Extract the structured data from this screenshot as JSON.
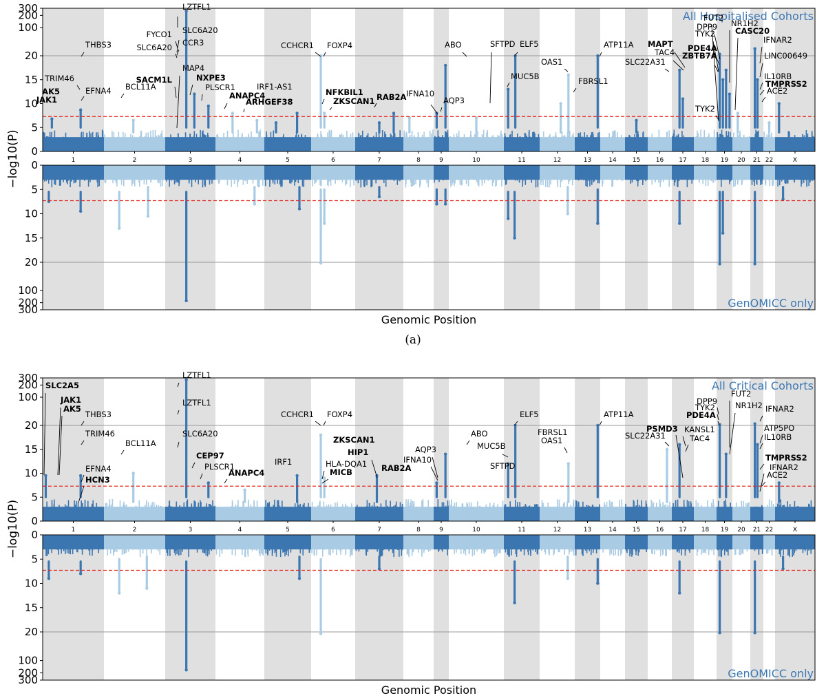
{
  "figure": {
    "subcaption": "(a)"
  },
  "colors": {
    "dark": "#3b76b0",
    "light": "#a9cbe3",
    "band": "#e0e0e0",
    "threshold": "#e8251d",
    "legend": "#3c78b4",
    "grid": "#999999"
  },
  "chart_data": [
    {
      "type": "scatter",
      "subtype": "miami_plot",
      "id": "a",
      "title_top": "All Hospitalised Cohorts",
      "title_bottom": "GenOMICC only",
      "xlabel": "Genomic Position",
      "ylabel": "−log10(P)",
      "y_ticks": [
        "0",
        "5",
        "10",
        "15",
        "20",
        "100",
        "200",
        "300"
      ],
      "y_scale": "linear 0-20, log-compressed 20-300",
      "genome_wide_significance": 7.3,
      "chromosomes": [
        "1",
        "2",
        "3",
        "4",
        "5",
        "6",
        "7",
        "8",
        "9",
        "10",
        "11",
        "12",
        "13",
        "14",
        "15",
        "16",
        "17",
        "18",
        "19",
        "20",
        "21",
        "22",
        "X"
      ],
      "top_peaks": [
        {
          "chr": "1",
          "pos": 0.62,
          "value": 8.7,
          "bg": 5
        },
        {
          "chr": "1",
          "pos": 0.15,
          "value": 6.8,
          "bg": 5
        },
        {
          "chr": "2",
          "pos": 0.48,
          "value": 6.5,
          "bg": 4
        },
        {
          "chr": "3",
          "pos": 0.42,
          "value": 255,
          "bg": 5
        },
        {
          "chr": "3",
          "pos": 0.58,
          "value": 12,
          "bg": 5
        },
        {
          "chr": "3",
          "pos": 0.86,
          "value": 9.5,
          "bg": 5
        },
        {
          "chr": "4",
          "pos": 0.35,
          "value": 8,
          "bg": 4
        },
        {
          "chr": "4",
          "pos": 0.85,
          "value": 6.5,
          "bg": 4
        },
        {
          "chr": "5",
          "pos": 0.25,
          "value": 6,
          "bg": 4
        },
        {
          "chr": "5",
          "pos": 0.7,
          "value": 8,
          "bg": 4
        },
        {
          "chr": "6",
          "pos": 0.22,
          "value": 20,
          "bg": 5
        },
        {
          "chr": "6",
          "pos": 0.3,
          "value": 8,
          "bg": 5
        },
        {
          "chr": "7",
          "pos": 0.5,
          "value": 6,
          "bg": 4
        },
        {
          "chr": "7",
          "pos": 0.8,
          "value": 8,
          "bg": 4
        },
        {
          "chr": "8",
          "pos": 0.2,
          "value": 7,
          "bg": 4
        },
        {
          "chr": "9",
          "pos": 0.2,
          "value": 8,
          "bg": 5
        },
        {
          "chr": "9",
          "pos": 0.78,
          "value": 18,
          "bg": 5
        },
        {
          "chr": "10",
          "pos": 0.5,
          "value": 7,
          "bg": 4
        },
        {
          "chr": "11",
          "pos": 0.32,
          "value": 20,
          "bg": 5
        },
        {
          "chr": "11",
          "pos": 0.12,
          "value": 13,
          "bg": 5
        },
        {
          "chr": "12",
          "pos": 0.82,
          "value": 16,
          "bg": 4
        },
        {
          "chr": "12",
          "pos": 0.6,
          "value": 10,
          "bg": 4
        },
        {
          "chr": "13",
          "pos": 0.9,
          "value": 20,
          "bg": 5
        },
        {
          "chr": "15",
          "pos": 0.5,
          "value": 6.5,
          "bg": 4
        },
        {
          "chr": "17",
          "pos": 0.35,
          "value": 17,
          "bg": 5
        },
        {
          "chr": "17",
          "pos": 0.5,
          "value": 11,
          "bg": 5
        },
        {
          "chr": "19",
          "pos": 0.2,
          "value": 22,
          "bg": 5
        },
        {
          "chr": "19",
          "pos": 0.4,
          "value": 15,
          "bg": 5
        },
        {
          "chr": "19",
          "pos": 0.6,
          "value": 17,
          "bg": 5
        },
        {
          "chr": "19",
          "pos": 0.82,
          "value": 12,
          "bg": 5
        },
        {
          "chr": "20",
          "pos": 0.3,
          "value": 8,
          "bg": 4
        },
        {
          "chr": "21",
          "pos": 0.35,
          "value": 30,
          "bg": 5
        },
        {
          "chr": "21",
          "pos": 0.55,
          "value": 15,
          "bg": 5
        },
        {
          "chr": "22",
          "pos": 0.5,
          "value": 6,
          "bg": 4
        },
        {
          "chr": "X",
          "pos": 0.1,
          "value": 10,
          "bg": 4
        }
      ],
      "bottom_peaks": [
        {
          "chr": "1",
          "pos": 0.62,
          "value": 9.5,
          "bg": 5.5
        },
        {
          "chr": "1",
          "pos": 0.1,
          "value": 7.5,
          "bg": 5.5
        },
        {
          "chr": "2",
          "pos": 0.25,
          "value": 13,
          "bg": 5.5
        },
        {
          "chr": "2",
          "pos": 0.72,
          "value": 10.5,
          "bg": 4.5
        },
        {
          "chr": "3",
          "pos": 0.42,
          "value": 180,
          "bg": 5.5
        },
        {
          "chr": "4",
          "pos": 0.8,
          "value": 8,
          "bg": 4.5
        },
        {
          "chr": "5",
          "pos": 0.75,
          "value": 9,
          "bg": 4.5
        },
        {
          "chr": "6",
          "pos": 0.22,
          "value": 21,
          "bg": 5
        },
        {
          "chr": "6",
          "pos": 0.3,
          "value": 12,
          "bg": 5
        },
        {
          "chr": "7",
          "pos": 0.5,
          "value": 6.5,
          "bg": 4.5
        },
        {
          "chr": "9",
          "pos": 0.2,
          "value": 8,
          "bg": 5
        },
        {
          "chr": "9",
          "pos": 0.78,
          "value": 8,
          "bg": 5
        },
        {
          "chr": "11",
          "pos": 0.3,
          "value": 15,
          "bg": 5.5
        },
        {
          "chr": "11",
          "pos": 0.12,
          "value": 11,
          "bg": 5.5
        },
        {
          "chr": "12",
          "pos": 0.8,
          "value": 10,
          "bg": 4.5
        },
        {
          "chr": "13",
          "pos": 0.9,
          "value": 12,
          "bg": 5
        },
        {
          "chr": "17",
          "pos": 0.35,
          "value": 12,
          "bg": 5.5
        },
        {
          "chr": "19",
          "pos": 0.2,
          "value": 22,
          "bg": 5.5
        },
        {
          "chr": "19",
          "pos": 0.4,
          "value": 14,
          "bg": 5.5
        },
        {
          "chr": "21",
          "pos": 0.35,
          "value": 22,
          "bg": 5.5
        },
        {
          "chr": "X",
          "pos": 0.2,
          "value": 7,
          "bg": 4.5
        }
      ],
      "labels": [
        {
          "text": "LZTFL1",
          "bold": false
        },
        {
          "text": "FYCO1",
          "bold": false
        },
        {
          "text": "SLC6A20",
          "bold": false
        },
        {
          "text": "CCR3",
          "bold": false
        },
        {
          "text": "SLC6A20",
          "bold": false
        },
        {
          "text": "MAP4",
          "bold": false
        },
        {
          "text": "SACM1L",
          "bold": true
        },
        {
          "text": "NXPE3",
          "bold": true
        },
        {
          "text": "PLSCR1",
          "bold": false
        },
        {
          "text": "THBS3",
          "bold": false
        },
        {
          "text": "TRIM46",
          "bold": false
        },
        {
          "text": "EFNA4",
          "bold": false
        },
        {
          "text": "AK5",
          "bold": true
        },
        {
          "text": "JAK1",
          "bold": true
        },
        {
          "text": "BCL11A",
          "bold": false
        },
        {
          "text": "ANAPC4",
          "bold": true
        },
        {
          "text": "ARHGEF38",
          "bold": true
        },
        {
          "text": "IRF1-AS1",
          "bold": false
        },
        {
          "text": "CCHCR1",
          "bold": false
        },
        {
          "text": "FOXP4",
          "bold": false
        },
        {
          "text": "NFKBIL1",
          "bold": true
        },
        {
          "text": "ZKSCAN1",
          "bold": true
        },
        {
          "text": "RAB2A",
          "bold": true
        },
        {
          "text": "IFNA10",
          "bold": false
        },
        {
          "text": "AQP3",
          "bold": false
        },
        {
          "text": "ABO",
          "bold": false
        },
        {
          "text": "SFTPD",
          "bold": false
        },
        {
          "text": "ELF5",
          "bold": false
        },
        {
          "text": "MUC5B",
          "bold": false
        },
        {
          "text": "OAS1",
          "bold": false
        },
        {
          "text": "FBRSL1",
          "bold": false
        },
        {
          "text": "ATP11A",
          "bold": false
        },
        {
          "text": "MAPT",
          "bold": true
        },
        {
          "text": "TAC4",
          "bold": false
        },
        {
          "text": "SLC22A31",
          "bold": false
        },
        {
          "text": "PDE4A",
          "bold": true
        },
        {
          "text": "ZBTB7A",
          "bold": true
        },
        {
          "text": "FUT2",
          "bold": false
        },
        {
          "text": "DPP9",
          "bold": false
        },
        {
          "text": "TYK2",
          "bold": false
        },
        {
          "text": "NR1H2",
          "bold": false
        },
        {
          "text": "CASC20",
          "bold": true
        },
        {
          "text": "IFNAR2",
          "bold": false
        },
        {
          "text": "LINC00649",
          "bold": false
        },
        {
          "text": "IL10RB",
          "bold": false
        },
        {
          "text": "TMPRSS2",
          "bold": true
        },
        {
          "text": "ACE2",
          "bold": false
        },
        {
          "text": "TYK2",
          "bold": false
        }
      ]
    },
    {
      "type": "scatter",
      "subtype": "miami_plot",
      "id": "b",
      "title_top": "All Critical Cohorts",
      "title_bottom": "GenOMICC only",
      "xlabel": "Genomic Position",
      "ylabel": "−log10(P)",
      "y_ticks": [
        "0",
        "5",
        "10",
        "15",
        "20",
        "100",
        "200",
        "300"
      ],
      "y_scale": "linear 0-20, log-compressed 20-300",
      "genome_wide_significance": 7.3,
      "chromosomes": [
        "1",
        "2",
        "3",
        "4",
        "5",
        "6",
        "7",
        "8",
        "9",
        "10",
        "11",
        "12",
        "13",
        "14",
        "15",
        "16",
        "17",
        "18",
        "19",
        "20",
        "21",
        "22",
        "X"
      ],
      "top_peaks": [
        {
          "chr": "1",
          "pos": 0.05,
          "value": 9.5,
          "bg": 5
        },
        {
          "chr": "1",
          "pos": 0.62,
          "value": 9.5,
          "bg": 5
        },
        {
          "chr": "2",
          "pos": 0.48,
          "value": 10,
          "bg": 4
        },
        {
          "chr": "3",
          "pos": 0.42,
          "value": 270,
          "bg": 5
        },
        {
          "chr": "3",
          "pos": 0.86,
          "value": 8,
          "bg": 5
        },
        {
          "chr": "4",
          "pos": 0.6,
          "value": 6.5,
          "bg": 4
        },
        {
          "chr": "5",
          "pos": 0.7,
          "value": 9.5,
          "bg": 4
        },
        {
          "chr": "6",
          "pos": 0.22,
          "value": 18,
          "bg": 5
        },
        {
          "chr": "6",
          "pos": 0.3,
          "value": 9,
          "bg": 5
        },
        {
          "chr": "7",
          "pos": 0.45,
          "value": 9.5,
          "bg": 4
        },
        {
          "chr": "9",
          "pos": 0.2,
          "value": 8,
          "bg": 5
        },
        {
          "chr": "9",
          "pos": 0.78,
          "value": 14,
          "bg": 5
        },
        {
          "chr": "11",
          "pos": 0.32,
          "value": 20,
          "bg": 5
        },
        {
          "chr": "11",
          "pos": 0.12,
          "value": 12,
          "bg": 5
        },
        {
          "chr": "12",
          "pos": 0.82,
          "value": 12,
          "bg": 4
        },
        {
          "chr": "13",
          "pos": 0.9,
          "value": 20,
          "bg": 5
        },
        {
          "chr": "16",
          "pos": 0.8,
          "value": 15,
          "bg": 4
        },
        {
          "chr": "17",
          "pos": 0.35,
          "value": 16,
          "bg": 5
        },
        {
          "chr": "19",
          "pos": 0.2,
          "value": 21,
          "bg": 5
        },
        {
          "chr": "19",
          "pos": 0.6,
          "value": 14,
          "bg": 5
        },
        {
          "chr": "21",
          "pos": 0.35,
          "value": 22,
          "bg": 5
        },
        {
          "chr": "21",
          "pos": 0.55,
          "value": 16,
          "bg": 5
        },
        {
          "chr": "X",
          "pos": 0.1,
          "value": 8,
          "bg": 4
        }
      ],
      "bottom_peaks": [
        {
          "chr": "1",
          "pos": 0.62,
          "value": 8,
          "bg": 5.5
        },
        {
          "chr": "1",
          "pos": 0.1,
          "value": 9,
          "bg": 5.5
        },
        {
          "chr": "2",
          "pos": 0.25,
          "value": 12,
          "bg": 5
        },
        {
          "chr": "2",
          "pos": 0.7,
          "value": 11,
          "bg": 4.5
        },
        {
          "chr": "3",
          "pos": 0.42,
          "value": 170,
          "bg": 5.5
        },
        {
          "chr": "5",
          "pos": 0.75,
          "value": 9,
          "bg": 4.5
        },
        {
          "chr": "6",
          "pos": 0.22,
          "value": 22,
          "bg": 5
        },
        {
          "chr": "7",
          "pos": 0.5,
          "value": 7,
          "bg": 4.5
        },
        {
          "chr": "11",
          "pos": 0.3,
          "value": 14,
          "bg": 5.5
        },
        {
          "chr": "12",
          "pos": 0.8,
          "value": 9,
          "bg": 4.5
        },
        {
          "chr": "13",
          "pos": 0.9,
          "value": 10,
          "bg": 5
        },
        {
          "chr": "17",
          "pos": 0.35,
          "value": 12,
          "bg": 5.5
        },
        {
          "chr": "19",
          "pos": 0.2,
          "value": 21,
          "bg": 5.5
        },
        {
          "chr": "21",
          "pos": 0.35,
          "value": 21,
          "bg": 5.5
        },
        {
          "chr": "X",
          "pos": 0.2,
          "value": 7,
          "bg": 4.5
        }
      ],
      "labels": [
        {
          "text": "LZTFL1",
          "bold": false
        },
        {
          "text": "LZTFL1",
          "bold": false
        },
        {
          "text": "SLC6A20",
          "bold": false
        },
        {
          "text": "CEP97",
          "bold": true
        },
        {
          "text": "PLSCR1",
          "bold": false
        },
        {
          "text": "ANAPC4",
          "bold": true
        },
        {
          "text": "SLC2A5",
          "bold": true
        },
        {
          "text": "JAK1",
          "bold": true
        },
        {
          "text": "AK5",
          "bold": true
        },
        {
          "text": "THBS3",
          "bold": false
        },
        {
          "text": "TRIM46",
          "bold": false
        },
        {
          "text": "EFNA4",
          "bold": false
        },
        {
          "text": "HCN3",
          "bold": true
        },
        {
          "text": "BCL11A",
          "bold": false
        },
        {
          "text": "IRF1",
          "bold": false
        },
        {
          "text": "CCHCR1",
          "bold": false
        },
        {
          "text": "FOXP4",
          "bold": false
        },
        {
          "text": "ZKSCAN1",
          "bold": true
        },
        {
          "text": "HIP1",
          "bold": true
        },
        {
          "text": "HLA-DQA1",
          "bold": false
        },
        {
          "text": "MICB",
          "bold": true
        },
        {
          "text": "RAB2A",
          "bold": true
        },
        {
          "text": "AQP3",
          "bold": false
        },
        {
          "text": "IFNA10",
          "bold": false
        },
        {
          "text": "ABO",
          "bold": false
        },
        {
          "text": "MUC5B",
          "bold": false
        },
        {
          "text": "SFTPD",
          "bold": false
        },
        {
          "text": "ELF5",
          "bold": false
        },
        {
          "text": "FBRSL1",
          "bold": false
        },
        {
          "text": "OAS1",
          "bold": false
        },
        {
          "text": "ATP11A",
          "bold": false
        },
        {
          "text": "PSMD3",
          "bold": true
        },
        {
          "text": "SLC22A31",
          "bold": false
        },
        {
          "text": "KANSL1",
          "bold": false
        },
        {
          "text": "TAC4",
          "bold": false
        },
        {
          "text": "DPP9",
          "bold": false
        },
        {
          "text": "TYK2",
          "bold": false
        },
        {
          "text": "PDE4A",
          "bold": true
        },
        {
          "text": "FUT2",
          "bold": false
        },
        {
          "text": "NR1H2",
          "bold": false
        },
        {
          "text": "IFNAR2",
          "bold": false
        },
        {
          "text": "ATP5PO",
          "bold": false
        },
        {
          "text": "IL10RB",
          "bold": false
        },
        {
          "text": "TMPRSS2",
          "bold": true
        },
        {
          "text": "IFNAR2",
          "bold": false
        },
        {
          "text": "ACE2",
          "bold": false
        }
      ]
    }
  ]
}
